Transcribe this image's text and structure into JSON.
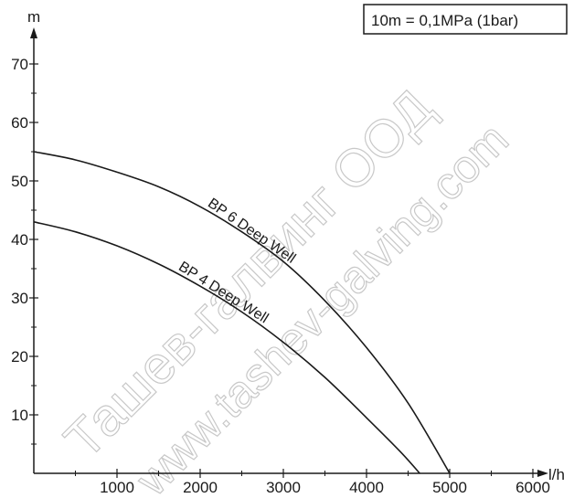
{
  "chart_data": {
    "type": "line",
    "ylabel": "m",
    "xlabel": "l/h",
    "xlim": [
      0,
      6000
    ],
    "ylim": [
      0,
      75
    ],
    "x_ticks": [
      1000,
      2000,
      3000,
      4000,
      5000,
      6000
    ],
    "y_ticks": [
      10,
      20,
      30,
      40,
      50,
      60,
      70
    ],
    "grid": false,
    "legend": {
      "text": "10m = 0,1MPa (1bar)",
      "placement": "top-right"
    },
    "series": [
      {
        "name": "BP 6 Deep Well",
        "x": [
          0,
          500,
          1000,
          1500,
          2000,
          2500,
          3000,
          3500,
          4000,
          4500,
          5000
        ],
        "y": [
          55,
          53.6,
          51.5,
          49,
          45.6,
          41.3,
          36.2,
          29.5,
          21.5,
          12,
          0
        ]
      },
      {
        "name": "BP 4 Deep Well",
        "x": [
          0,
          500,
          1000,
          1500,
          2000,
          2500,
          3000,
          3500,
          4000,
          4400,
          4640
        ],
        "y": [
          43,
          41.3,
          38.9,
          35.8,
          32,
          27.6,
          22.4,
          16.4,
          9.5,
          3.8,
          0
        ]
      }
    ]
  },
  "watermark": [
    "Ташев-галвинг ООД",
    "www.tashev-galving.com"
  ]
}
